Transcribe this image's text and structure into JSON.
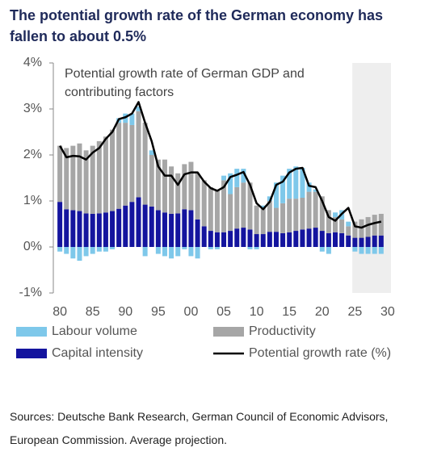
{
  "title": "The potential growth rate of the German economy has fallen to about 0.5%",
  "chart_data": {
    "type": "bar",
    "annotation": "Potential growth rate of German GDP and contributing factors",
    "x": [
      1980,
      1981,
      1982,
      1983,
      1984,
      1985,
      1986,
      1987,
      1988,
      1989,
      1990,
      1991,
      1992,
      1993,
      1994,
      1995,
      1996,
      1997,
      1998,
      1999,
      2000,
      2001,
      2002,
      2003,
      2004,
      2005,
      2006,
      2007,
      2008,
      2009,
      2010,
      2011,
      2012,
      2013,
      2014,
      2015,
      2016,
      2017,
      2018,
      2019,
      2020,
      2021,
      2022,
      2023,
      2024,
      2025,
      2026,
      2027,
      2028,
      2029
    ],
    "series": [
      {
        "name": "Labour volume",
        "color": "#7ec8ea",
        "values": [
          -0.1,
          -0.15,
          -0.25,
          -0.3,
          -0.2,
          -0.15,
          -0.1,
          -0.1,
          -0.05,
          0.1,
          0.2,
          0.25,
          0.1,
          -0.2,
          0.1,
          -0.15,
          -0.2,
          -0.25,
          -0.2,
          -0.05,
          -0.2,
          -0.25,
          0,
          -0.05,
          -0.05,
          0.1,
          0.45,
          0.4,
          0.3,
          -0.05,
          -0.05,
          0.05,
          0.1,
          0.55,
          0.6,
          0.65,
          0.7,
          0.65,
          0.2,
          0.05,
          -0.1,
          -0.15,
          0.1,
          0.2,
          0.1,
          -0.1,
          -0.15,
          -0.15,
          -0.15,
          -0.15
        ]
      },
      {
        "name": "Productivity",
        "color": "#a6a6a6",
        "values": [
          1.22,
          1.33,
          1.4,
          1.47,
          1.37,
          1.48,
          1.57,
          1.65,
          1.77,
          1.87,
          1.8,
          1.67,
          1.87,
          1.78,
          1.12,
          1.1,
          1.15,
          1.03,
          0.87,
          0.98,
          1.05,
          1.0,
          1.0,
          0.95,
          0.93,
          1.13,
          0.8,
          0.9,
          0.98,
          1.02,
          0.62,
          0.57,
          0.67,
          0.52,
          0.65,
          0.73,
          0.7,
          0.69,
          0.8,
          0.78,
          0.75,
          0.5,
          0.33,
          0.3,
          0.2,
          0.35,
          0.4,
          0.43,
          0.45,
          0.47
        ]
      },
      {
        "name": "Capital intensity",
        "color": "#14149e",
        "values": [
          0.98,
          0.82,
          0.8,
          0.78,
          0.73,
          0.72,
          0.73,
          0.75,
          0.78,
          0.83,
          0.9,
          0.98,
          1.08,
          0.92,
          0.88,
          0.8,
          0.75,
          0.72,
          0.73,
          0.82,
          0.8,
          0.6,
          0.45,
          0.35,
          0.32,
          0.32,
          0.35,
          0.4,
          0.42,
          0.38,
          0.28,
          0.28,
          0.33,
          0.33,
          0.3,
          0.32,
          0.35,
          0.38,
          0.4,
          0.42,
          0.35,
          0.3,
          0.32,
          0.3,
          0.25,
          0.2,
          0.2,
          0.22,
          0.25,
          0.25
        ]
      },
      {
        "name": "Potential growth rate (%)",
        "type": "line",
        "color": "#000000",
        "values": [
          2.2,
          1.95,
          1.98,
          1.97,
          1.9,
          2.05,
          2.15,
          2.35,
          2.5,
          2.78,
          2.82,
          2.9,
          3.15,
          2.7,
          2.3,
          1.75,
          1.55,
          1.55,
          1.35,
          1.58,
          1.62,
          1.62,
          1.42,
          1.28,
          1.22,
          1.3,
          1.52,
          1.57,
          1.63,
          1.35,
          0.95,
          0.82,
          0.98,
          1.35,
          1.42,
          1.62,
          1.7,
          1.72,
          1.33,
          1.3,
          1.0,
          0.65,
          0.57,
          0.72,
          0.85,
          0.45,
          0.42,
          0.48,
          0.52,
          0.55
        ]
      }
    ],
    "xlim": [
      1979,
      2030.5
    ],
    "xticks": [
      {
        "value": 1980,
        "label": "80"
      },
      {
        "value": 1985,
        "label": "85"
      },
      {
        "value": 1990,
        "label": "90"
      },
      {
        "value": 1995,
        "label": "95"
      },
      {
        "value": 2000,
        "label": "00"
      },
      {
        "value": 2005,
        "label": "05"
      },
      {
        "value": 2010,
        "label": "10"
      },
      {
        "value": 2015,
        "label": "15"
      },
      {
        "value": 2020,
        "label": "20"
      },
      {
        "value": 2025,
        "label": "25"
      },
      {
        "value": 2030,
        "label": "30"
      }
    ],
    "ylim": [
      -1,
      4
    ],
    "yticks": [
      {
        "value": -1,
        "label": "-1%"
      },
      {
        "value": 0,
        "label": "0%"
      },
      {
        "value": 1,
        "label": "1%"
      },
      {
        "value": 2,
        "label": "2%"
      },
      {
        "value": 3,
        "label": "3%"
      },
      {
        "value": 4,
        "label": "4%"
      }
    ],
    "shaded_range": [
      2024.6,
      2030.5
    ],
    "grid": false
  },
  "sources": "Sources: Deutsche Bank Research, German Council of Economic Advisors, European Commission. Average projection."
}
